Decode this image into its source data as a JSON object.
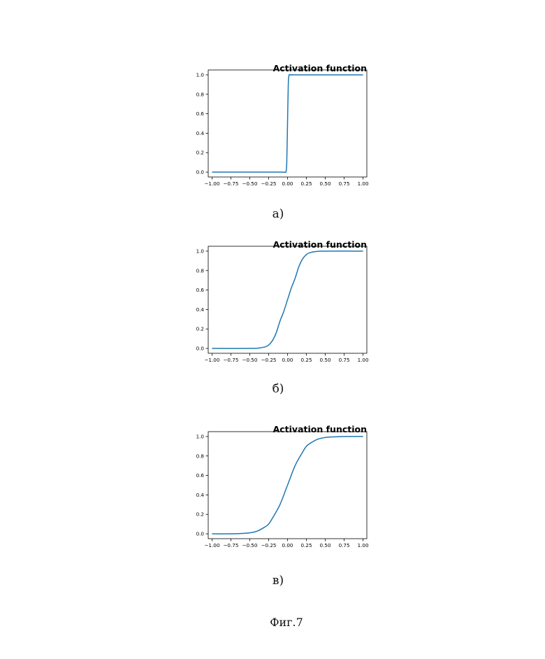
{
  "figure_caption": "Фиг.7",
  "panels": [
    {
      "label": "а)",
      "title": "Activation function"
    },
    {
      "label": "б)",
      "title": "Activation function"
    },
    {
      "label": "в)",
      "title": "Activation function"
    }
  ],
  "chart_data": [
    {
      "type": "line",
      "title": "Activation function",
      "xlabel": "",
      "ylabel": "",
      "xlim": [
        -1.05,
        1.05
      ],
      "ylim": [
        -0.05,
        1.05
      ],
      "xticks": [
        -1.0,
        -0.75,
        -0.5,
        -0.25,
        0.0,
        0.25,
        0.5,
        0.75,
        1.0
      ],
      "xtick_labels": [
        "−1.00",
        "−0.75",
        "−0.50",
        "−0.25",
        "0.00",
        "0.25",
        "0.50",
        "0.75",
        "1.00"
      ],
      "yticks": [
        0.0,
        0.2,
        0.4,
        0.6,
        0.8,
        1.0
      ],
      "ytick_labels": [
        "0.0",
        "0.2",
        "0.4",
        "0.6",
        "0.8",
        "1.0"
      ],
      "grid": false,
      "color": "#1f77b4",
      "series": [
        {
          "x": [
            -1.0,
            -0.5,
            -0.1,
            -0.04,
            -0.02,
            -0.01,
            0.0,
            0.01,
            0.02,
            0.04,
            0.1,
            0.5,
            1.0
          ],
          "y": [
            0.0,
            0.0,
            0.0,
            0.0,
            0.005,
            0.1,
            0.5,
            0.9,
            0.995,
            1.0,
            1.0,
            1.0,
            1.0
          ]
        }
      ]
    },
    {
      "type": "line",
      "title": "Activation function",
      "xlabel": "",
      "ylabel": "",
      "xlim": [
        -1.05,
        1.05
      ],
      "ylim": [
        -0.05,
        1.05
      ],
      "xticks": [
        -1.0,
        -0.75,
        -0.5,
        -0.25,
        0.0,
        0.25,
        0.5,
        0.75,
        1.0
      ],
      "xtick_labels": [
        "−1.00",
        "−0.75",
        "−0.50",
        "−0.25",
        "0.00",
        "0.25",
        "0.50",
        "0.75",
        "1.00"
      ],
      "yticks": [
        0.0,
        0.2,
        0.4,
        0.6,
        0.8,
        1.0
      ],
      "ytick_labels": [
        "0.0",
        "0.2",
        "0.4",
        "0.6",
        "0.8",
        "1.0"
      ],
      "grid": false,
      "color": "#1f77b4",
      "series": [
        {
          "x": [
            -1.0,
            -0.5,
            -0.4,
            -0.3,
            -0.25,
            -0.2,
            -0.15,
            -0.1,
            -0.05,
            0.0,
            0.05,
            0.1,
            0.15,
            0.2,
            0.25,
            0.3,
            0.4,
            0.5,
            1.0
          ],
          "y": [
            0.0,
            0.0,
            0.002,
            0.015,
            0.035,
            0.08,
            0.16,
            0.28,
            0.38,
            0.5,
            0.62,
            0.72,
            0.84,
            0.92,
            0.965,
            0.985,
            0.998,
            1.0,
            1.0
          ]
        }
      ]
    },
    {
      "type": "line",
      "title": "Activation function",
      "xlabel": "",
      "ylabel": "",
      "xlim": [
        -1.05,
        1.05
      ],
      "ylim": [
        -0.05,
        1.05
      ],
      "xticks": [
        -1.0,
        -0.75,
        -0.5,
        -0.25,
        0.0,
        0.25,
        0.5,
        0.75,
        1.0
      ],
      "xtick_labels": [
        "−1.00",
        "−0.75",
        "−0.50",
        "−0.25",
        "0.00",
        "0.25",
        "0.50",
        "0.75",
        "1.00"
      ],
      "yticks": [
        0.0,
        0.2,
        0.4,
        0.6,
        0.8,
        1.0
      ],
      "ytick_labels": [
        "0.0",
        "0.2",
        "0.4",
        "0.6",
        "0.8",
        "1.0"
      ],
      "grid": false,
      "color": "#1f77b4",
      "series": [
        {
          "x": [
            -1.0,
            -0.75,
            -0.6,
            -0.5,
            -0.4,
            -0.3,
            -0.25,
            -0.2,
            -0.1,
            0.0,
            0.1,
            0.2,
            0.25,
            0.3,
            0.4,
            0.5,
            0.6,
            0.75,
            1.0
          ],
          "y": [
            0.0,
            0.0,
            0.004,
            0.01,
            0.028,
            0.07,
            0.1,
            0.16,
            0.3,
            0.5,
            0.7,
            0.84,
            0.9,
            0.93,
            0.972,
            0.99,
            0.996,
            1.0,
            1.0
          ]
        }
      ]
    }
  ]
}
